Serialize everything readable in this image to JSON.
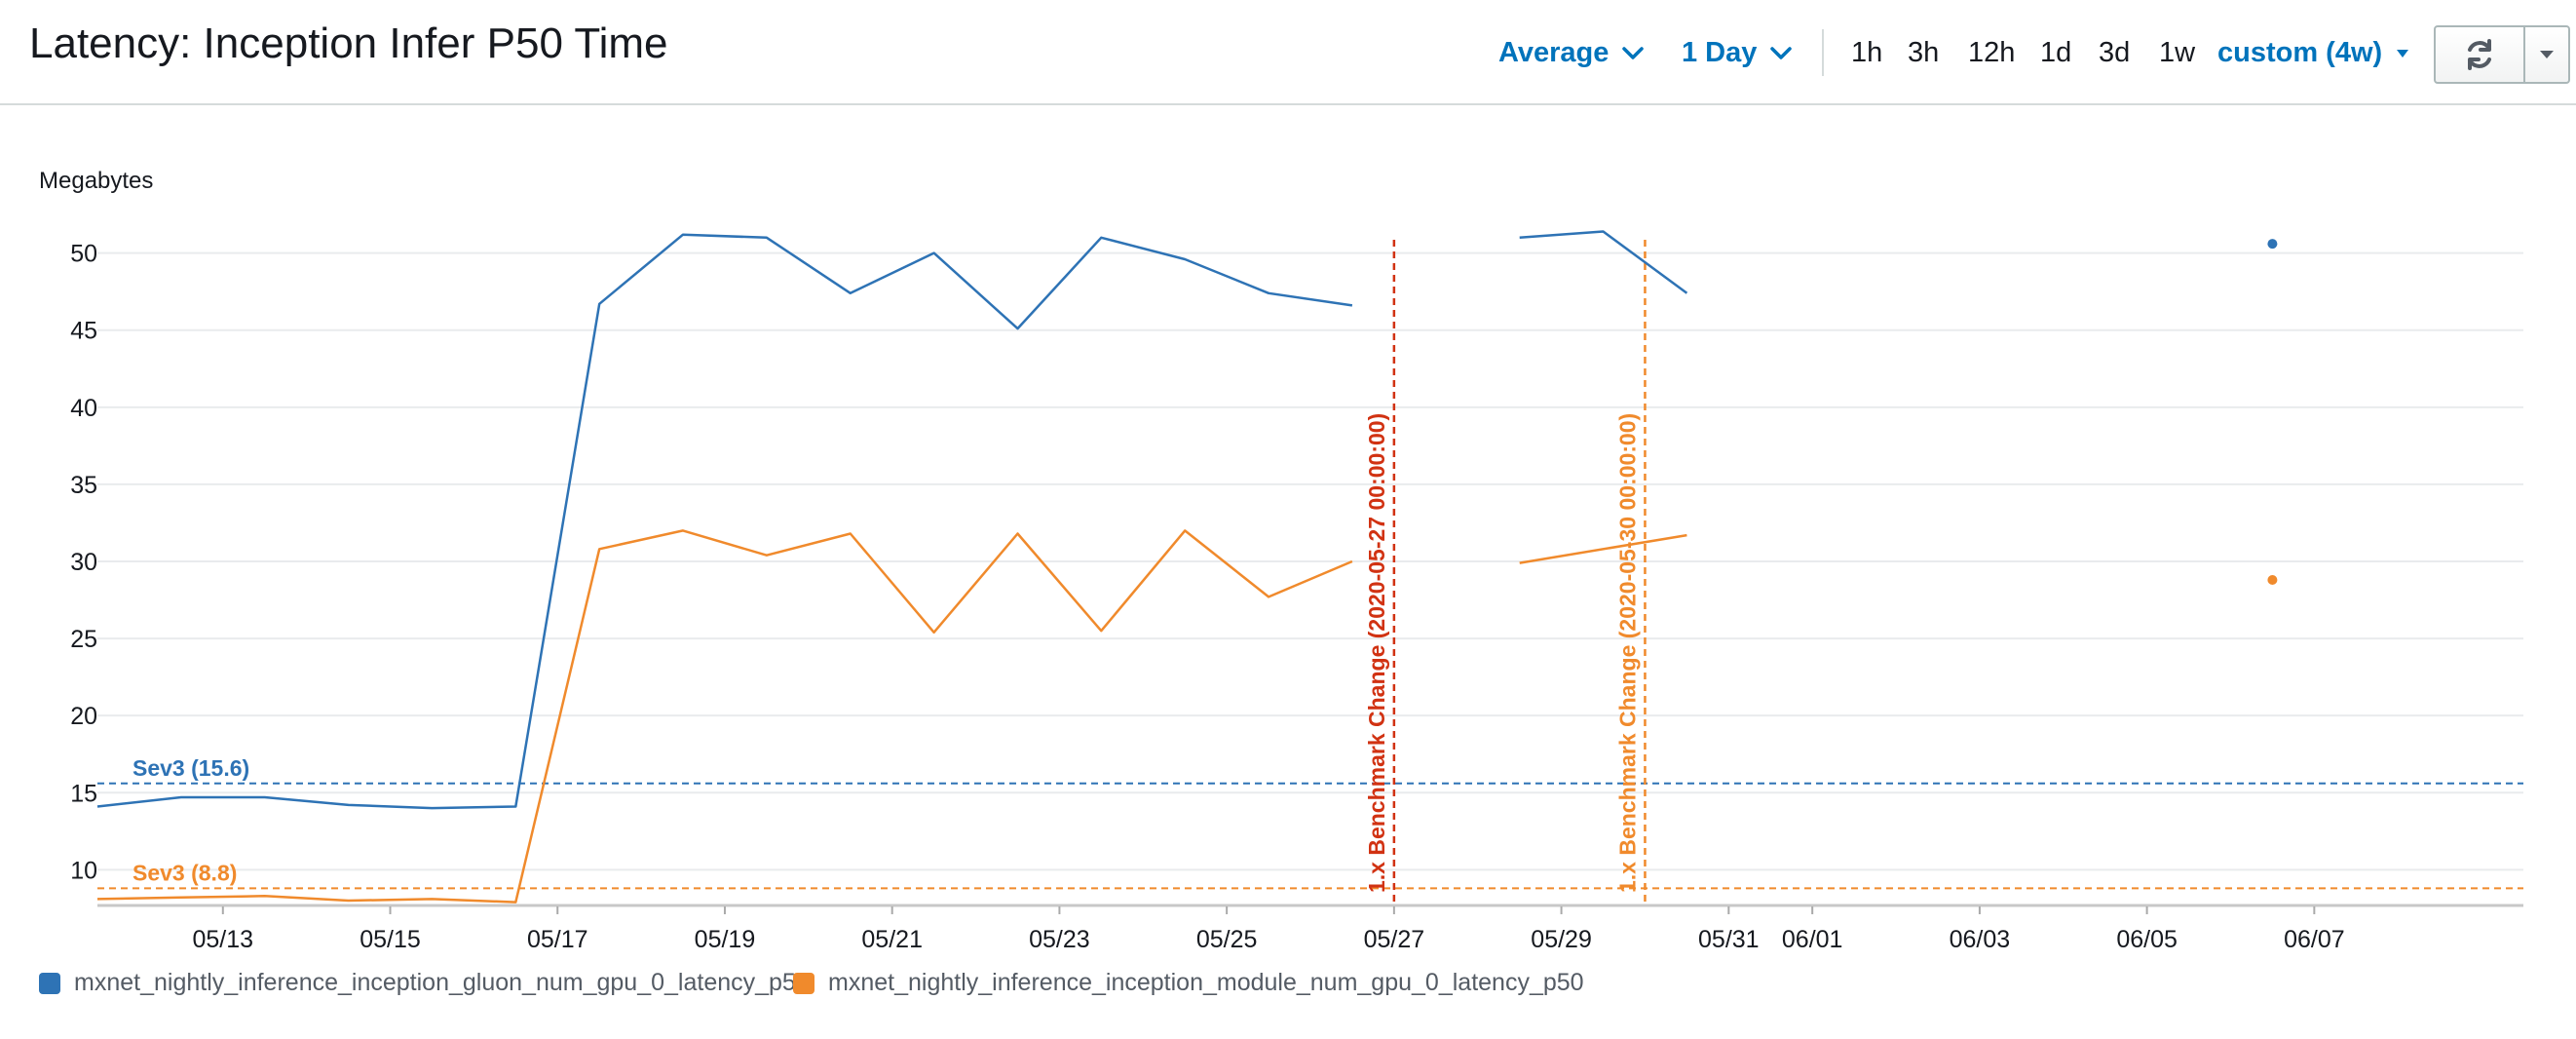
{
  "header": {
    "title": "Latency: Inception Infer P50 Time",
    "statistic": "Average",
    "period": "1 Day",
    "ranges": [
      "1h",
      "3h",
      "12h",
      "1d",
      "3d",
      "1w"
    ],
    "custom_range": "custom (4w)"
  },
  "colors": {
    "blue": "#2e73b5",
    "orange": "#f08a2c",
    "red": "#d13212",
    "accent": "#0073bb"
  },
  "icons": {
    "refresh": "refresh-icon",
    "menu": "caret-down-icon"
  },
  "chart_data": {
    "type": "line",
    "ylabel": "Megabytes",
    "ylim": [
      8,
      52
    ],
    "yticks": [
      10,
      15,
      20,
      25,
      30,
      35,
      40,
      45,
      50
    ],
    "xlim": [
      "2020-05-11T12:00",
      "2020-06-09T12:00"
    ],
    "xticks": [
      {
        "date": "2020-05-13",
        "label": "05/13"
      },
      {
        "date": "2020-05-15",
        "label": "05/15"
      },
      {
        "date": "2020-05-17",
        "label": "05/17"
      },
      {
        "date": "2020-05-19",
        "label": "05/19"
      },
      {
        "date": "2020-05-21",
        "label": "05/21"
      },
      {
        "date": "2020-05-23",
        "label": "05/23"
      },
      {
        "date": "2020-05-25",
        "label": "05/25"
      },
      {
        "date": "2020-05-27",
        "label": "05/27"
      },
      {
        "date": "2020-05-29",
        "label": "05/29"
      },
      {
        "date": "2020-05-31",
        "label": "05/31"
      },
      {
        "date": "2020-06-01",
        "label": "06/01"
      },
      {
        "date": "2020-06-03",
        "label": "06/03"
      },
      {
        "date": "2020-06-05",
        "label": "06/05"
      },
      {
        "date": "2020-06-07",
        "label": "06/07"
      }
    ],
    "grid": true,
    "series": [
      {
        "name": "mxnet_nightly_inference_inception_gluon_num_gpu_0_latency_p50",
        "color": "#2e73b5",
        "points": [
          {
            "x": "2020-05-11T12:00",
            "y": 14.1
          },
          {
            "x": "2020-05-12T12:00",
            "y": 14.7
          },
          {
            "x": "2020-05-13T12:00",
            "y": 14.7
          },
          {
            "x": "2020-05-14T12:00",
            "y": 14.2
          },
          {
            "x": "2020-05-15T12:00",
            "y": 14.0
          },
          {
            "x": "2020-05-16T12:00",
            "y": 14.1
          },
          {
            "x": "2020-05-17T12:00",
            "y": 46.7
          },
          {
            "x": "2020-05-18T12:00",
            "y": 51.2
          },
          {
            "x": "2020-05-19T12:00",
            "y": 51.0
          },
          {
            "x": "2020-05-20T12:00",
            "y": 47.4
          },
          {
            "x": "2020-05-21T12:00",
            "y": 50.0
          },
          {
            "x": "2020-05-22T12:00",
            "y": 45.1
          },
          {
            "x": "2020-05-23T12:00",
            "y": 51.0
          },
          {
            "x": "2020-05-24T12:00",
            "y": 49.6
          },
          {
            "x": "2020-05-25T12:00",
            "y": 47.4
          },
          {
            "x": "2020-05-26T12:00",
            "y": 46.6
          },
          {
            "gap": true
          },
          {
            "x": "2020-05-28T12:00",
            "y": 51.0
          },
          {
            "x": "2020-05-29T12:00",
            "y": 51.4
          },
          {
            "x": "2020-05-30T12:00",
            "y": 47.4
          },
          {
            "gap": true
          },
          {
            "x": "2020-06-06T12:00",
            "y": 50.6
          }
        ],
        "threshold": {
          "label": "Sev3 (15.6)",
          "value": 15.6
        }
      },
      {
        "name": "mxnet_nightly_inference_inception_module_num_gpu_0_latency_p50",
        "color": "#f08a2c",
        "points": [
          {
            "x": "2020-05-11T12:00",
            "y": 8.1
          },
          {
            "x": "2020-05-12T12:00",
            "y": 8.2
          },
          {
            "x": "2020-05-13T12:00",
            "y": 8.3
          },
          {
            "x": "2020-05-14T12:00",
            "y": 8.0
          },
          {
            "x": "2020-05-15T12:00",
            "y": 8.1
          },
          {
            "x": "2020-05-16T12:00",
            "y": 7.9
          },
          {
            "x": "2020-05-17T12:00",
            "y": 30.8
          },
          {
            "x": "2020-05-18T12:00",
            "y": 32.0
          },
          {
            "x": "2020-05-19T12:00",
            "y": 30.4
          },
          {
            "x": "2020-05-20T12:00",
            "y": 31.8
          },
          {
            "x": "2020-05-21T12:00",
            "y": 25.4
          },
          {
            "x": "2020-05-22T12:00",
            "y": 31.8
          },
          {
            "x": "2020-05-23T12:00",
            "y": 25.5
          },
          {
            "x": "2020-05-24T12:00",
            "y": 32.0
          },
          {
            "x": "2020-05-25T12:00",
            "y": 27.7
          },
          {
            "x": "2020-05-26T12:00",
            "y": 30.0
          },
          {
            "gap": true
          },
          {
            "x": "2020-05-28T12:00",
            "y": 29.9
          },
          {
            "x": "2020-05-30T12:00",
            "y": 31.7
          },
          {
            "gap": true
          },
          {
            "x": "2020-06-06T12:00",
            "y": 28.8
          }
        ],
        "threshold": {
          "label": "Sev3 (8.8)",
          "value": 8.8
        }
      }
    ],
    "annotations": [
      {
        "label": "1.x Benchmark Change (2020-05-27 00:00:00)",
        "x": "2020-05-27T00:00",
        "color": "#d13212"
      },
      {
        "label": "1.x Benchmark Change (2020-05-30 00:00:00)",
        "x": "2020-05-30T00:00",
        "color": "#f08a2c"
      }
    ],
    "legend_placement": "bottom-left"
  }
}
